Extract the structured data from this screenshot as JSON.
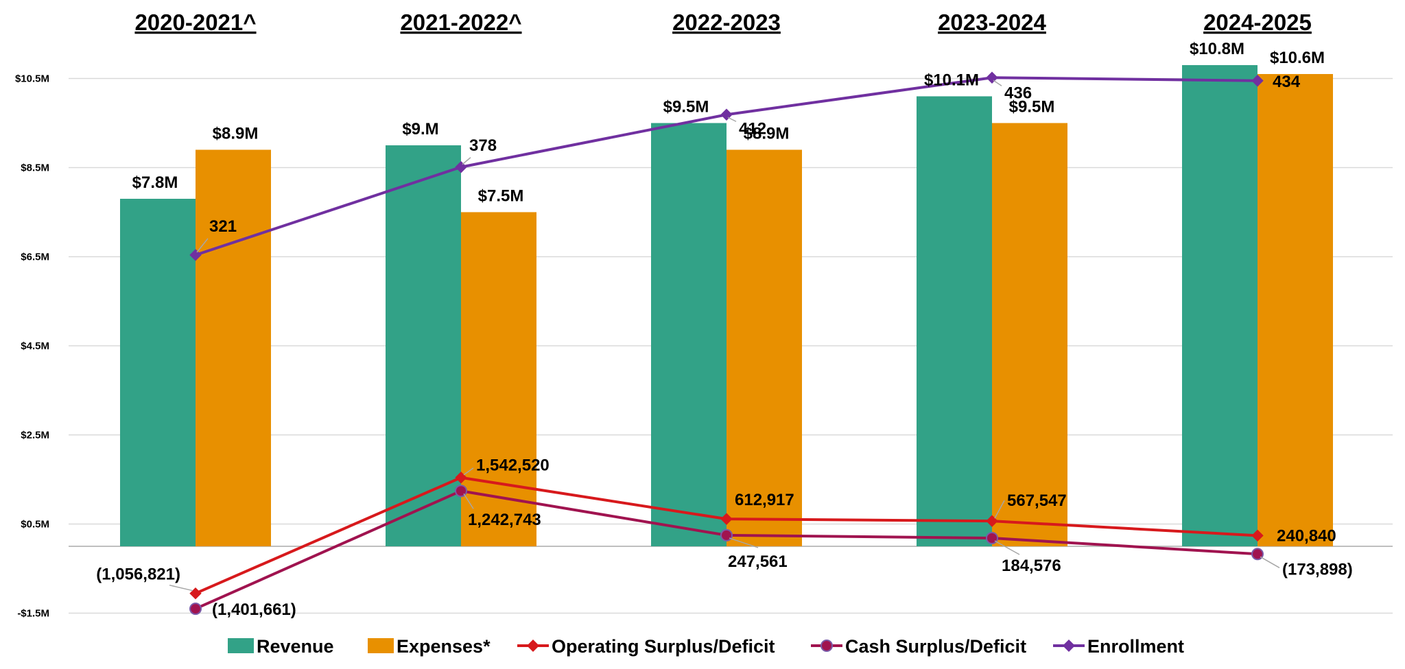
{
  "chart_data": {
    "type": "bar",
    "categories": [
      "2020-2021^",
      "2021-2022^",
      "2022-2023",
      "2023-2024",
      "2024-2025"
    ],
    "y_axis": {
      "min": -1.5,
      "max": 11.5,
      "unit": "M",
      "ticks": [
        -1.5,
        0.5,
        2.5,
        4.5,
        6.5,
        8.5,
        10.5
      ],
      "tick_labels": [
        "-$1.5M",
        "$0.5M",
        "$2.5M",
        "$4.5M",
        "$6.5M",
        "$8.5M",
        "$10.5M"
      ],
      "grid": true
    },
    "legend_position": "bottom",
    "series": [
      {
        "name": "Revenue",
        "type": "bar",
        "color": "#32A287",
        "values": [
          7.8,
          9.0,
          9.5,
          10.1,
          10.8
        ],
        "labels": [
          "$7.8M",
          "$9.M",
          "$9.5M",
          "$10.1M",
          "$10.8M"
        ]
      },
      {
        "name": "Expenses*",
        "type": "bar",
        "color": "#E89000",
        "values": [
          8.9,
          7.5,
          8.9,
          9.5,
          10.6
        ],
        "labels": [
          "$8.9M",
          "$7.5M",
          "$8.9M",
          "$9.5M",
          "$10.6M"
        ]
      },
      {
        "name": "Operating Surplus/Deficit",
        "type": "line",
        "marker": "diamond",
        "color": "#D7191C",
        "values": [
          -1056821,
          1542520,
          612917,
          567547,
          240840
        ],
        "labels": [
          "(1,056,821)",
          "1,542,520",
          "612,917",
          "567,547",
          "240,840"
        ]
      },
      {
        "name": "Cash Surplus/Deficit",
        "type": "line",
        "marker": "circle",
        "color": "#A0134F",
        "values": [
          -1401661,
          1242743,
          247561,
          184576,
          -173898
        ],
        "labels": [
          "(1,401,661)",
          "1,242,743",
          "247,561",
          "184,576",
          "(173,898)"
        ]
      },
      {
        "name": "Enrollment",
        "type": "line",
        "marker": "diamond",
        "color": "#7030A0",
        "values": [
          321,
          378,
          412,
          436,
          434
        ],
        "labels": [
          "321",
          "378",
          "412",
          "436",
          "434"
        ]
      }
    ]
  }
}
